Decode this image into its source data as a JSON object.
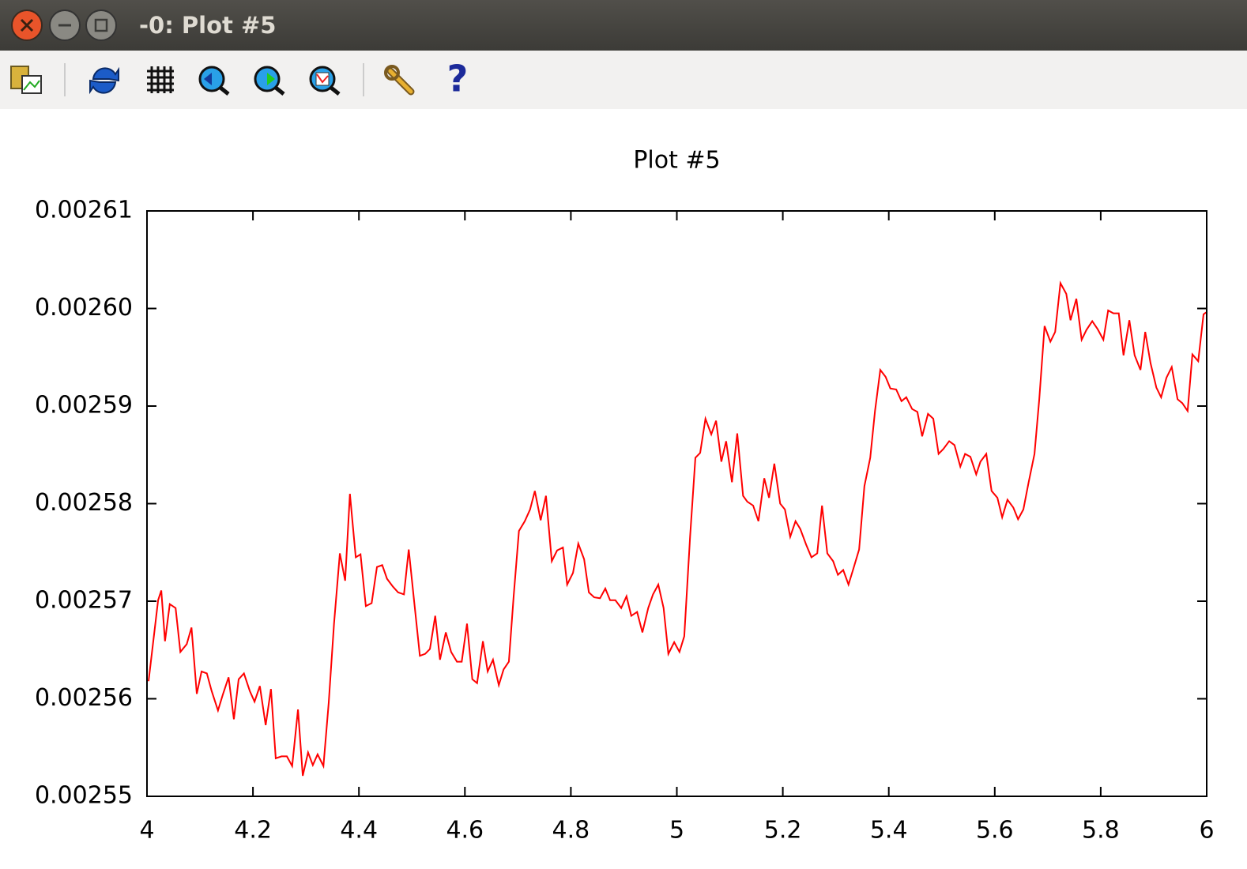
{
  "window": {
    "title": "-0: Plot #5"
  },
  "chart_data": {
    "type": "line",
    "title": "Plot #5",
    "xlim": [
      4,
      6
    ],
    "xticks": [
      4,
      4.2,
      4.4,
      4.6,
      4.8,
      5,
      5.2,
      5.4,
      5.6,
      5.8,
      6
    ],
    "ylim": [
      0.00255,
      0.00261
    ],
    "yticks": [
      0.00255,
      0.00256,
      0.00257,
      0.00258,
      0.00259,
      {
        "value": 0.0026,
        "label": "0.00260"
      },
      0.00261
    ],
    "grid": false,
    "series": [
      {
        "color": "#ff0000",
        "x": [
          4.003,
          4.021,
          4.027,
          4.034,
          4.043,
          4.054,
          4.063,
          4.075,
          4.084,
          4.094,
          4.103,
          4.113,
          4.122,
          4.134,
          4.143,
          4.154,
          4.164,
          4.173,
          4.183,
          4.194,
          4.203,
          4.213,
          4.224,
          4.234,
          4.243,
          4.254,
          4.264,
          4.274,
          4.285,
          4.294,
          4.304,
          4.313,
          4.322,
          4.333,
          4.343,
          4.353,
          4.364,
          4.374,
          4.383,
          4.394,
          4.403,
          4.413,
          4.424,
          4.434,
          4.444,
          4.453,
          4.464,
          4.474,
          4.485,
          4.494,
          4.504,
          4.515,
          4.525,
          4.534,
          4.544,
          4.553,
          4.564,
          4.574,
          4.585,
          4.594,
          4.604,
          4.614,
          4.623,
          4.634,
          4.643,
          4.653,
          4.664,
          4.673,
          4.683,
          4.692,
          4.702,
          4.713,
          4.723,
          4.732,
          4.743,
          4.753,
          4.764,
          4.774,
          4.785,
          4.793,
          4.804,
          4.814,
          4.825,
          4.834,
          4.844,
          4.855,
          4.865,
          4.874,
          4.884,
          4.895,
          4.905,
          4.914,
          4.925,
          4.935,
          4.946,
          4.955,
          4.965,
          4.975,
          4.984,
          4.995,
          5.005,
          5.014,
          5.025,
          5.035,
          5.044,
          5.054,
          5.065,
          5.074,
          5.084,
          5.093,
          5.104,
          5.114,
          5.125,
          5.133,
          5.144,
          5.154,
          5.165,
          5.174,
          5.184,
          5.195,
          5.204,
          5.214,
          5.224,
          5.233,
          5.244,
          5.254,
          5.265,
          5.274,
          5.284,
          5.295,
          5.304,
          5.314,
          5.324,
          5.333,
          5.344,
          5.354,
          5.365,
          5.374,
          5.384,
          5.394,
          5.403,
          5.414,
          5.424,
          5.433,
          5.444,
          5.454,
          5.463,
          5.474,
          5.484,
          5.494,
          5.503,
          5.514,
          5.524,
          5.535,
          5.544,
          5.554,
          5.565,
          5.573,
          5.584,
          5.594,
          5.605,
          5.614,
          5.624,
          5.635,
          5.644,
          5.654,
          5.664,
          5.675,
          5.684,
          5.694,
          5.705,
          5.714,
          5.724,
          5.735,
          5.743,
          5.754,
          5.764,
          5.773,
          5.784,
          5.794,
          5.805,
          5.814,
          5.824,
          5.834,
          5.843,
          5.854,
          5.864,
          5.875,
          5.884,
          5.894,
          5.905,
          5.914,
          5.924,
          5.934,
          5.945,
          5.954,
          5.964,
          5.973,
          5.984,
          5.994,
          5.999
        ],
        "values": [
          0.0025618,
          0.0025701,
          0.0025711,
          0.0025659,
          0.0025697,
          0.0025693,
          0.0025648,
          0.0025656,
          0.0025673,
          0.0025605,
          0.0025628,
          0.0025626,
          0.0025608,
          0.0025588,
          0.0025604,
          0.0025622,
          0.0025579,
          0.002562,
          0.0025626,
          0.0025608,
          0.0025597,
          0.0025613,
          0.0025573,
          0.002561,
          0.0025539,
          0.0025541,
          0.0025541,
          0.0025531,
          0.0025589,
          0.0025521,
          0.0025545,
          0.0025532,
          0.0025543,
          0.0025531,
          0.0025596,
          0.0025677,
          0.0025749,
          0.0025721,
          0.002581,
          0.0025745,
          0.0025748,
          0.0025695,
          0.0025698,
          0.0025735,
          0.0025737,
          0.0025723,
          0.0025715,
          0.0025709,
          0.0025707,
          0.0025753,
          0.0025701,
          0.0025644,
          0.0025646,
          0.0025651,
          0.0025685,
          0.002564,
          0.0025668,
          0.0025648,
          0.0025638,
          0.0025638,
          0.0025677,
          0.002562,
          0.0025616,
          0.0025659,
          0.0025628,
          0.002564,
          0.0025614,
          0.002563,
          0.0025638,
          0.0025705,
          0.0025772,
          0.0025782,
          0.0025794,
          0.0025813,
          0.0025783,
          0.0025808,
          0.0025741,
          0.0025752,
          0.0025755,
          0.0025717,
          0.0025729,
          0.0025759,
          0.0025743,
          0.0025709,
          0.0025704,
          0.0025703,
          0.0025713,
          0.0025701,
          0.0025701,
          0.0025693,
          0.0025705,
          0.0025685,
          0.0025689,
          0.0025668,
          0.0025693,
          0.0025707,
          0.0025717,
          0.0025693,
          0.0025646,
          0.0025658,
          0.0025648,
          0.0025664,
          0.0025766,
          0.0025847,
          0.0025852,
          0.0025887,
          0.0025871,
          0.0025885,
          0.0025843,
          0.0025864,
          0.0025822,
          0.0025872,
          0.0025808,
          0.0025802,
          0.0025798,
          0.0025782,
          0.0025826,
          0.0025806,
          0.0025841,
          0.00258,
          0.0025794,
          0.0025766,
          0.0025782,
          0.0025774,
          0.0025758,
          0.0025745,
          0.0025749,
          0.0025798,
          0.0025749,
          0.0025741,
          0.0025727,
          0.0025732,
          0.0025717,
          0.0025733,
          0.0025753,
          0.0025818,
          0.0025847,
          0.0025895,
          0.0025937,
          0.002593,
          0.0025918,
          0.0025917,
          0.0025905,
          0.0025909,
          0.0025897,
          0.0025894,
          0.0025869,
          0.0025892,
          0.0025887,
          0.0025851,
          0.0025856,
          0.0025864,
          0.002586,
          0.0025838,
          0.0025851,
          0.0025848,
          0.002583,
          0.0025843,
          0.0025851,
          0.0025813,
          0.0025806,
          0.0025786,
          0.0025804,
          0.0025796,
          0.0025784,
          0.0025794,
          0.0025822,
          0.0025851,
          0.0025907,
          0.0025982,
          0.0025966,
          0.0025976,
          0.0026026,
          0.0026015,
          0.0025988,
          0.002601,
          0.0025968,
          0.0025978,
          0.0025987,
          0.0025979,
          0.0025968,
          0.0025998,
          0.0025995,
          0.0025995,
          0.0025952,
          0.0025988,
          0.0025952,
          0.0025937,
          0.0025976,
          0.0025944,
          0.0025919,
          0.0025909,
          0.0025929,
          0.002594,
          0.0025907,
          0.0025903,
          0.0025895,
          0.0025953,
          0.0025946,
          0.0025994,
          0.0025996
        ]
      }
    ]
  }
}
